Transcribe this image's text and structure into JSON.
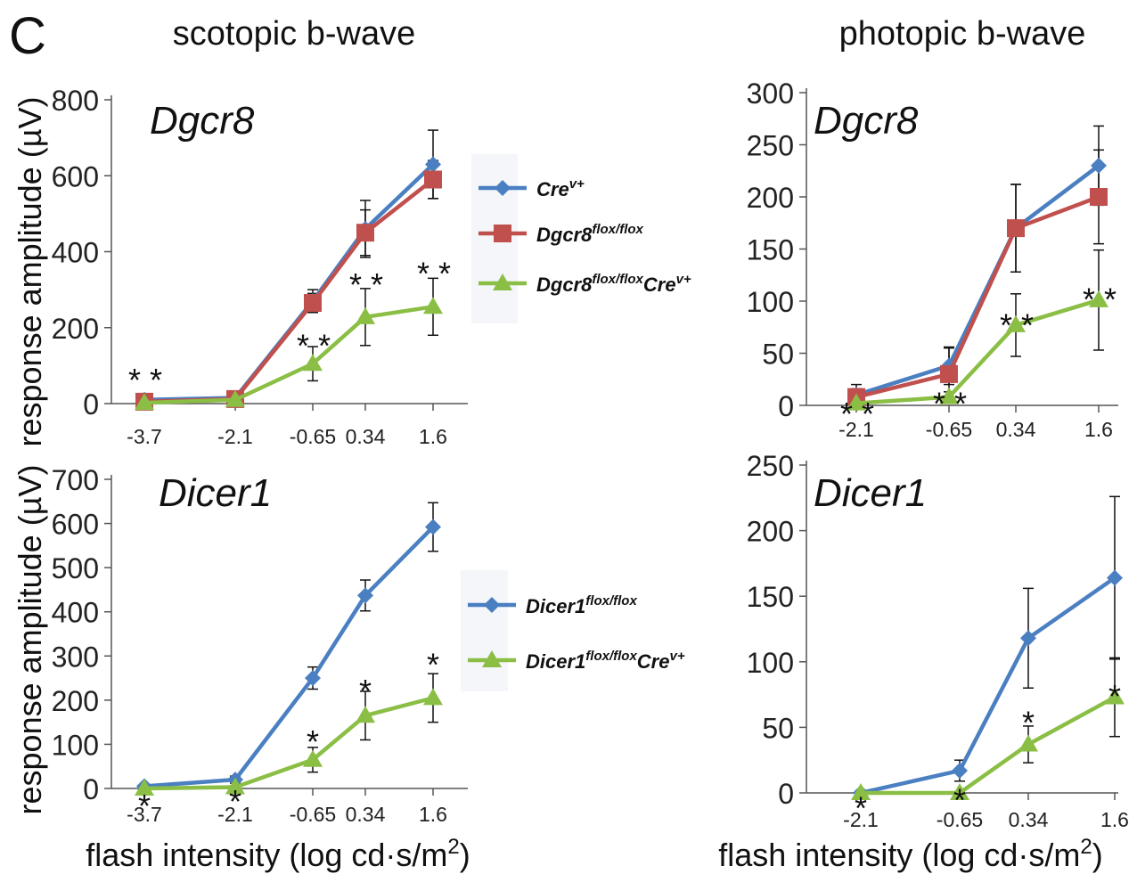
{
  "figure": {
    "panel_letter": "C",
    "col_titles": [
      "scotopic b-wave",
      "photopic b-wave"
    ],
    "ylabel": "response amplitude (µV)",
    "xlabel_main": "flash intensity (log cd·s/m",
    "xlabel_sup": "2",
    "xlabel_end": ")"
  },
  "legends": [
    {
      "entries": [
        {
          "base": "Cre",
          "sup": "v+",
          "tail": "",
          "tail_sup": "",
          "color": "#4a7fc1",
          "marker": "diamond"
        },
        {
          "base": "Dgcr8",
          "sup": "flox/flox",
          "tail": "",
          "tail_sup": "",
          "color": "#c0504d",
          "marker": "square"
        },
        {
          "base": "Dgcr8",
          "sup": "flox/flox",
          "tail": "Cre",
          "tail_sup": "v+",
          "color": "#8bbe45",
          "marker": "triangle"
        }
      ]
    },
    {
      "entries": [
        {
          "base": "Dicer1",
          "sup": "flox/flox",
          "tail": "",
          "tail_sup": "",
          "color": "#4a7fc1",
          "marker": "diamond"
        },
        {
          "base": "Dicer1",
          "sup": "flox/flox",
          "tail": "Cre",
          "tail_sup": "v+",
          "color": "#8bbe45",
          "marker": "triangle"
        }
      ]
    }
  ],
  "chart_data": [
    {
      "type": "line",
      "title": "Dgcr8",
      "categories": [
        "-3.7",
        "-2.1",
        "-0.65",
        "0.34",
        "1.6"
      ],
      "ylim": [
        0,
        800
      ],
      "yticks": [
        0,
        200,
        400,
        600,
        800
      ],
      "series": [
        {
          "name": "Crev+",
          "color": "#4a7fc1",
          "marker": "diamond",
          "values": [
            10,
            15,
            270,
            460,
            630
          ],
          "errors": [
            5,
            5,
            30,
            75,
            90
          ]
        },
        {
          "name": "Dgcr8flox/flox",
          "color": "#c0504d",
          "marker": "square",
          "values": [
            5,
            12,
            265,
            450,
            590
          ],
          "errors": [
            5,
            5,
            25,
            60,
            50
          ]
        },
        {
          "name": "Dgcr8flox/floxCrev+",
          "color": "#8bbe45",
          "marker": "triangle",
          "values": [
            2,
            10,
            105,
            228,
            255
          ],
          "errors": [
            3,
            5,
            45,
            75,
            75
          ]
        }
      ],
      "annotations": [
        {
          "x": "-3.7",
          "y": 85,
          "colors": [
            "#111111",
            "#e02020"
          ]
        },
        {
          "x": "-0.65",
          "y": 175,
          "colors": [
            "#111111",
            "#e02020"
          ]
        },
        {
          "x": "0.34",
          "y": 335,
          "colors": [
            "#111111",
            "#e02020"
          ]
        },
        {
          "x": "1.6",
          "y": 365,
          "colors": [
            "#111111",
            "#e02020"
          ]
        }
      ]
    },
    {
      "type": "line",
      "title": "Dgcr8",
      "categories": [
        "-2.1",
        "-0.65",
        "0.34",
        "1.6"
      ],
      "ylim": [
        0,
        300
      ],
      "yticks": [
        0,
        50,
        100,
        150,
        200,
        250,
        300
      ],
      "series": [
        {
          "name": "Crev+",
          "color": "#4a7fc1",
          "marker": "diamond",
          "values": [
            10,
            38,
            170,
            230
          ],
          "errors": [
            10,
            18,
            42,
            38
          ]
        },
        {
          "name": "Dgcr8flox/flox",
          "color": "#c0504d",
          "marker": "square",
          "values": [
            8,
            30,
            170,
            200
          ],
          "errors": [
            8,
            25,
            42,
            45
          ]
        },
        {
          "name": "Dgcr8flox/floxCrev+",
          "color": "#8bbe45",
          "marker": "triangle",
          "values": [
            2,
            8,
            77,
            101
          ],
          "errors": [
            3,
            5,
            30,
            48
          ]
        }
      ],
      "annotations": [
        {
          "x": "-2.1",
          "y": 0,
          "colors": [
            "#111111",
            "#e02020"
          ]
        },
        {
          "x": "-0.65",
          "y": 10,
          "colors": [
            "#111111",
            "#e02020"
          ]
        },
        {
          "x": "0.34",
          "y": 85,
          "colors": [
            "#111111",
            "#e02020"
          ]
        },
        {
          "x": "1.6",
          "y": 110,
          "colors": [
            "#111111",
            "#e02020"
          ]
        }
      ]
    },
    {
      "type": "line",
      "title": "Dicer1",
      "categories": [
        "-3.7",
        "-2.1",
        "-0.65",
        "0.34",
        "1.6"
      ],
      "ylim": [
        0,
        700
      ],
      "yticks": [
        0,
        100,
        200,
        300,
        400,
        500,
        600,
        700
      ],
      "series": [
        {
          "name": "Dicer1flox/flox",
          "color": "#4a7fc1",
          "marker": "diamond",
          "values": [
            5,
            20,
            250,
            437,
            592
          ],
          "errors": [
            3,
            8,
            25,
            35,
            55
          ]
        },
        {
          "name": "Dicer1flox/floxCrev+",
          "color": "#8bbe45",
          "marker": "triangle",
          "values": [
            0,
            3,
            65,
            165,
            205
          ],
          "errors": [
            2,
            3,
            28,
            55,
            55
          ]
        }
      ],
      "annotations": [
        {
          "x": "-3.7",
          "y": -20,
          "colors": [
            "#111111"
          ]
        },
        {
          "x": "-2.1",
          "y": -10,
          "colors": [
            "#111111"
          ]
        },
        {
          "x": "-0.65",
          "y": 125,
          "colors": [
            "#111111"
          ]
        },
        {
          "x": "0.34",
          "y": 240,
          "colors": [
            "#111111"
          ]
        },
        {
          "x": "1.6",
          "y": 300,
          "colors": [
            "#111111"
          ]
        }
      ]
    },
    {
      "type": "line",
      "title": "Dicer1",
      "categories": [
        "-2.1",
        "-0.65",
        "0.34",
        "1.6"
      ],
      "ylim": [
        0,
        250
      ],
      "yticks": [
        0,
        50,
        100,
        150,
        200,
        250
      ],
      "series": [
        {
          "name": "Dicer1flox/flox",
          "color": "#4a7fc1",
          "marker": "diamond",
          "values": [
            0,
            17,
            118,
            164
          ],
          "errors": [
            2,
            8,
            38,
            62
          ]
        },
        {
          "name": "Dicer1flox/floxCrev+",
          "color": "#8bbe45",
          "marker": "triangle",
          "values": [
            0,
            0,
            37,
            73
          ],
          "errors": [
            1,
            1,
            14,
            30
          ]
        }
      ],
      "annotations": [
        {
          "x": "-2.1",
          "y": -5,
          "colors": [
            "#111111"
          ]
        },
        {
          "x": "-0.65",
          "y": 1,
          "colors": [
            "#111111"
          ]
        },
        {
          "x": "0.34",
          "y": 60,
          "colors": [
            "#111111"
          ]
        },
        {
          "x": "1.6",
          "y": 80,
          "colors": [
            "#111111"
          ]
        }
      ]
    }
  ]
}
